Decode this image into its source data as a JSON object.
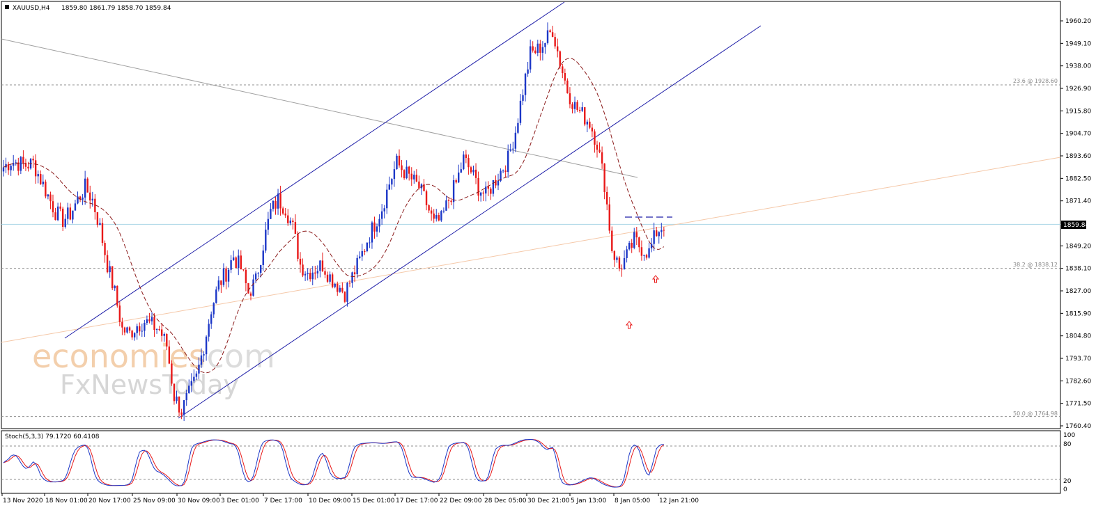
{
  "header": {
    "symbol": "XAUUSD,H4",
    "ohlc": "1859.80 1861.79 1858.70 1859.84"
  },
  "price_axis": {
    "ticks": [
      "1960.20",
      "1949.10",
      "1938.00",
      "1926.90",
      "1915.80",
      "1904.70",
      "1893.60",
      "1882.50",
      "1871.40",
      "1849.20",
      "1838.10",
      "1827.00",
      "1815.90",
      "1804.80",
      "1793.70",
      "1782.60",
      "1771.50",
      "1760.40"
    ],
    "current_price_label": "1859.84"
  },
  "fib_labels": {
    "f236": "23.6 @ 1928.60",
    "f382": "38.2 @ 1838.12",
    "f500": "50.0 @ 1764.98"
  },
  "watermark": {
    "line1_part1": "economies",
    "line1_part2": ".com",
    "line2": "FxNewsToday"
  },
  "indicator": {
    "label": "Stoch(5,3,3) 79.1720 60.4108",
    "ticks": [
      "100",
      "80",
      "20",
      "0"
    ]
  },
  "time_axis": {
    "labels": [
      "13 Nov 2020",
      "18 Nov 01:00",
      "20 Nov 17:00",
      "25 Nov 09:00",
      "30 Nov 09:00",
      "3 Dec 01:00",
      "7 Dec 17:00",
      "10 Dec 09:00",
      "15 Dec 01:00",
      "17 Dec 17:00",
      "22 Dec 09:00",
      "28 Dec 05:00",
      "30 Dec 21:00",
      "5 Jan 13:00",
      "8 Jan 05:00",
      "12 Jan 21:00"
    ]
  },
  "colors": {
    "bull": "#1c37c7",
    "bear": "#e81818",
    "channel": "#1e1ea8",
    "trendline_gray": "#a0a0a0",
    "ma": "#8b1a1a",
    "fib_dash": "#909090",
    "current_line": "#a8d4e6",
    "peach_line": "#f5c8a8",
    "stoch_main": "#1c37c7",
    "stoch_signal": "#e81818"
  },
  "chart_data": {
    "type": "candlestick",
    "title": "XAUUSD,H4",
    "y_range": [
      1760.4,
      1960.2
    ],
    "x": [
      "13 Nov 2020",
      "18 Nov 01:00",
      "20 Nov 17:00",
      "25 Nov 09:00",
      "30 Nov 09:00",
      "3 Dec 01:00",
      "7 Dec 17:00",
      "10 Dec 09:00",
      "15 Dec 01:00",
      "17 Dec 17:00",
      "22 Dec 09:00",
      "28 Dec 05:00",
      "30 Dec 21:00",
      "5 Jan 13:00",
      "8 Jan 05:00",
      "12 Jan 21:00"
    ],
    "close_path": [
      [
        0,
        1888
      ],
      [
        3,
        1891
      ],
      [
        6,
        1890
      ],
      [
        9,
        1889
      ],
      [
        12,
        1890
      ],
      [
        15,
        1882
      ],
      [
        18,
        1874
      ],
      [
        21,
        1866
      ],
      [
        24,
        1862
      ],
      [
        27,
        1865
      ],
      [
        30,
        1872
      ],
      [
        33,
        1878
      ],
      [
        36,
        1872
      ],
      [
        39,
        1858
      ],
      [
        42,
        1840
      ],
      [
        45,
        1826
      ],
      [
        48,
        1808
      ],
      [
        51,
        1806
      ],
      [
        54,
        1810
      ],
      [
        57,
        1812
      ],
      [
        60,
        1810
      ],
      [
        63,
        1808
      ],
      [
        66,
        1800
      ],
      [
        69,
        1775
      ],
      [
        72,
        1768
      ],
      [
        75,
        1776
      ],
      [
        78,
        1784
      ],
      [
        81,
        1800
      ],
      [
        84,
        1818
      ],
      [
        87,
        1830
      ],
      [
        90,
        1836
      ],
      [
        93,
        1844
      ],
      [
        96,
        1838
      ],
      [
        99,
        1826
      ],
      [
        102,
        1832
      ],
      [
        105,
        1850
      ],
      [
        108,
        1866
      ],
      [
        111,
        1872
      ],
      [
        114,
        1868
      ],
      [
        117,
        1858
      ],
      [
        120,
        1840
      ],
      [
        123,
        1836
      ],
      [
        126,
        1838
      ],
      [
        129,
        1840
      ],
      [
        132,
        1834
      ],
      [
        135,
        1830
      ],
      [
        138,
        1826
      ],
      [
        141,
        1834
      ],
      [
        144,
        1842
      ],
      [
        147,
        1852
      ],
      [
        150,
        1860
      ],
      [
        153,
        1868
      ],
      [
        156,
        1880
      ],
      [
        159,
        1890
      ],
      [
        162,
        1886
      ],
      [
        165,
        1882
      ],
      [
        168,
        1878
      ],
      [
        171,
        1870
      ],
      [
        174,
        1860
      ],
      [
        177,
        1862
      ],
      [
        180,
        1872
      ],
      [
        183,
        1880
      ],
      [
        186,
        1892
      ],
      [
        189,
        1886
      ],
      [
        192,
        1878
      ],
      [
        195,
        1874
      ],
      [
        198,
        1880
      ],
      [
        201,
        1886
      ],
      [
        204,
        1892
      ],
      [
        207,
        1906
      ],
      [
        210,
        1926
      ],
      [
        213,
        1944
      ],
      [
        216,
        1946
      ],
      [
        219,
        1950
      ],
      [
        222,
        1956
      ],
      [
        225,
        1940
      ],
      [
        228,
        1926
      ],
      [
        231,
        1918
      ],
      [
        234,
        1914
      ],
      [
        237,
        1910
      ],
      [
        240,
        1900
      ],
      [
        243,
        1880
      ],
      [
        246,
        1848
      ],
      [
        249,
        1838
      ],
      [
        252,
        1844
      ],
      [
        255,
        1852
      ],
      [
        258,
        1848
      ],
      [
        261,
        1846
      ],
      [
        264,
        1856
      ],
      [
        267,
        1860
      ]
    ],
    "fib_levels": [
      {
        "label": "23.6",
        "price": 1928.6
      },
      {
        "label": "38.2",
        "price": 1838.12
      },
      {
        "label": "50.0",
        "price": 1764.98
      }
    ],
    "current_price": 1859.84,
    "indicator": {
      "name": "Stoch(5,3,3)",
      "main": 79.172,
      "signal": 60.4108,
      "levels": [
        20,
        80
      ],
      "range": [
        0,
        100
      ]
    }
  }
}
